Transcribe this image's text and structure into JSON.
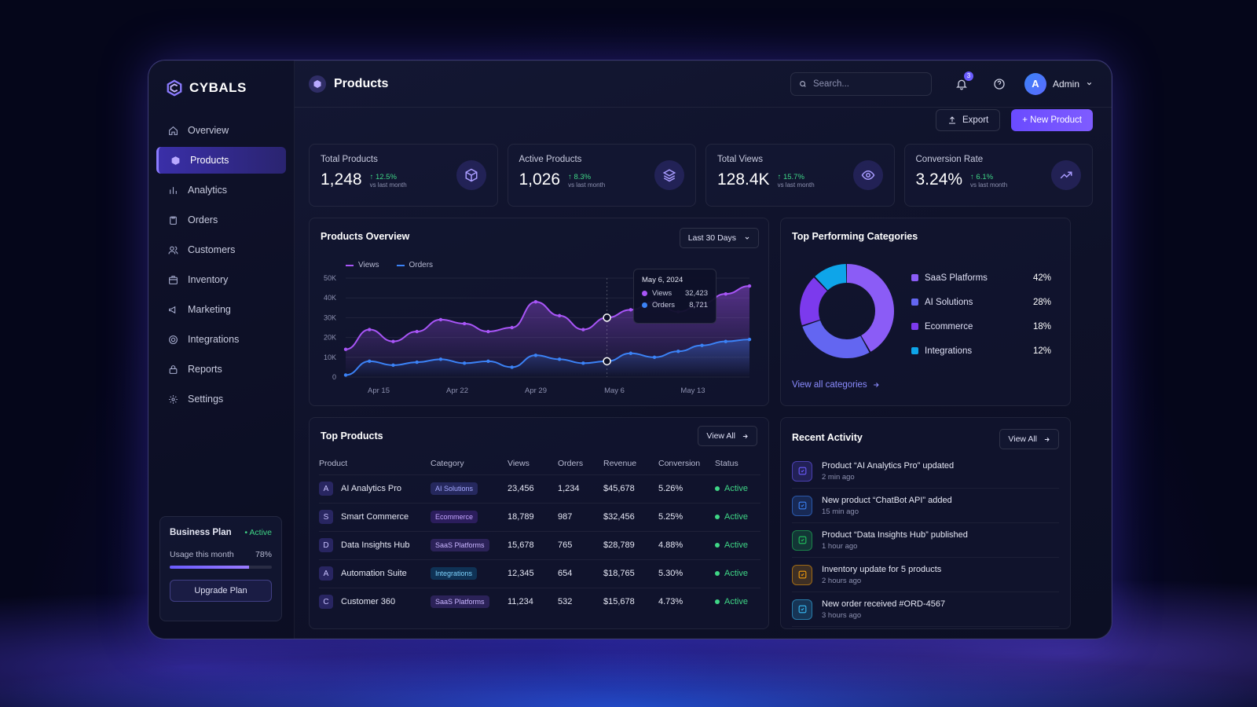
{
  "brand": {
    "name": "CYBALS"
  },
  "sidebar": {
    "items": [
      {
        "label": "Overview",
        "icon": "home-icon"
      },
      {
        "label": "Products",
        "icon": "box-icon",
        "active": true
      },
      {
        "label": "Analytics",
        "icon": "bar-chart-icon"
      },
      {
        "label": "Orders",
        "icon": "clipboard-icon"
      },
      {
        "label": "Customers",
        "icon": "users-icon"
      },
      {
        "label": "Inventory",
        "icon": "package-icon"
      },
      {
        "label": "Marketing",
        "icon": "megaphone-icon"
      },
      {
        "label": "Integrations",
        "icon": "gear-link-icon"
      },
      {
        "label": "Reports",
        "icon": "lock-report-icon"
      },
      {
        "label": "Settings",
        "icon": "gear-icon"
      }
    ],
    "plan": {
      "title": "Business Plan",
      "status": "• Active",
      "usage_label": "Usage this month",
      "usage_value": "78%",
      "usage_fraction": 0.78,
      "button": "Upgrade Plan"
    }
  },
  "header": {
    "title": "Products",
    "search_placeholder": "Search...",
    "notifications_count": "3",
    "avatar_letter": "A",
    "user_name": "Admin"
  },
  "actions": {
    "export": "Export",
    "new_product": "+ New Product"
  },
  "stats": [
    {
      "label": "Total Products",
      "value": "1,248",
      "delta": "↑ 12.5%",
      "delta_sub": "vs last month",
      "icon": "cube-icon"
    },
    {
      "label": "Active Products",
      "value": "1,026",
      "delta": "↑ 8.3%",
      "delta_sub": "vs last month",
      "icon": "layers-icon"
    },
    {
      "label": "Total Views",
      "value": "128.4K",
      "delta": "↑ 15.7%",
      "delta_sub": "vs last month",
      "icon": "eye-icon"
    },
    {
      "label": "Conversion Rate",
      "value": "3.24%",
      "delta": "↑ 6.1%",
      "delta_sub": "vs last month",
      "icon": "trend-up-icon"
    }
  ],
  "overview": {
    "title": "Products Overview",
    "range": "Last 30 Days",
    "tooltip": {
      "date": "May 6, 2024",
      "views_label": "Views",
      "views_value": "32,423",
      "orders_label": "Orders",
      "orders_value": "8,721"
    }
  },
  "chart_data": {
    "type": "line",
    "x_ticks": [
      "Apr 15",
      "Apr 22",
      "Apr 29",
      "May 6",
      "May 13"
    ],
    "y_ticks": [
      "0",
      "10K",
      "20K",
      "30K",
      "40K",
      "50K"
    ],
    "ylim": [
      0,
      50000
    ],
    "series": [
      {
        "name": "Views",
        "color": "#a855f7",
        "values": [
          14000,
          24000,
          18000,
          23000,
          29000,
          27000,
          23000,
          25000,
          38000,
          31000,
          24000,
          30000,
          34000,
          38000,
          33000,
          37000,
          42000,
          46000
        ]
      },
      {
        "name": "Orders",
        "color": "#3b82f6",
        "values": [
          1000,
          8000,
          6000,
          7500,
          9000,
          7000,
          8000,
          5000,
          11000,
          9000,
          7000,
          8000,
          12000,
          10000,
          13000,
          16000,
          18000,
          19000
        ]
      }
    ]
  },
  "categories": {
    "title": "Top Performing Categories",
    "link": "View all categories",
    "items": [
      {
        "name": "SaaS Platforms",
        "pct": "42%",
        "value": 42,
        "color": "#8b5cf6"
      },
      {
        "name": "AI Solutions",
        "pct": "28%",
        "value": 28,
        "color": "#6366f1"
      },
      {
        "name": "Ecommerce",
        "pct": "18%",
        "value": 18,
        "color": "#7c3aed"
      },
      {
        "name": "Integrations",
        "pct": "12%",
        "value": 12,
        "color": "#0ea5e9"
      }
    ]
  },
  "top_products": {
    "title": "Top Products",
    "view_all": "View All",
    "columns": [
      "Product",
      "Category",
      "Views",
      "Orders",
      "Revenue",
      "Conversion",
      "Status"
    ],
    "rows": [
      {
        "initial": "A",
        "name": "AI Analytics Pro",
        "category": "AI Solutions",
        "views": "23,456",
        "orders": "1,234",
        "revenue": "$45,678",
        "conversion": "5.26%",
        "status": "Active"
      },
      {
        "initial": "S",
        "name": "Smart Commerce",
        "category": "Ecommerce",
        "views": "18,789",
        "orders": "987",
        "revenue": "$32,456",
        "conversion": "5.25%",
        "status": "Active"
      },
      {
        "initial": "D",
        "name": "Data Insights Hub",
        "category": "SaaS Platforms",
        "views": "15,678",
        "orders": "765",
        "revenue": "$28,789",
        "conversion": "4.88%",
        "status": "Active"
      },
      {
        "initial": "A",
        "name": "Automation Suite",
        "category": "Integrations",
        "views": "12,345",
        "orders": "654",
        "revenue": "$18,765",
        "conversion": "5.30%",
        "status": "Active"
      },
      {
        "initial": "C",
        "name": "Customer 360",
        "category": "SaaS Platforms",
        "views": "11,234",
        "orders": "532",
        "revenue": "$15,678",
        "conversion": "4.73%",
        "status": "Active"
      }
    ]
  },
  "activity": {
    "title": "Recent Activity",
    "view_all": "View All",
    "items": [
      {
        "title": "Product “AI Analytics Pro” updated",
        "time": "2 min ago",
        "icon": "edit-icon",
        "color": "#6d5cff"
      },
      {
        "title": "New product “ChatBot API” added",
        "time": "15 min ago",
        "icon": "box-plus-icon",
        "color": "#3b82f6"
      },
      {
        "title": "Product “Data Insights Hub” published",
        "time": "1 hour ago",
        "icon": "check-circle-icon",
        "color": "#22c55e"
      },
      {
        "title": "Inventory update for 5 products",
        "time": "2 hours ago",
        "icon": "inventory-icon",
        "color": "#f59e0b"
      },
      {
        "title": "New order received #ORD-4567",
        "time": "3 hours ago",
        "icon": "order-icon",
        "color": "#38bdf8"
      }
    ]
  }
}
